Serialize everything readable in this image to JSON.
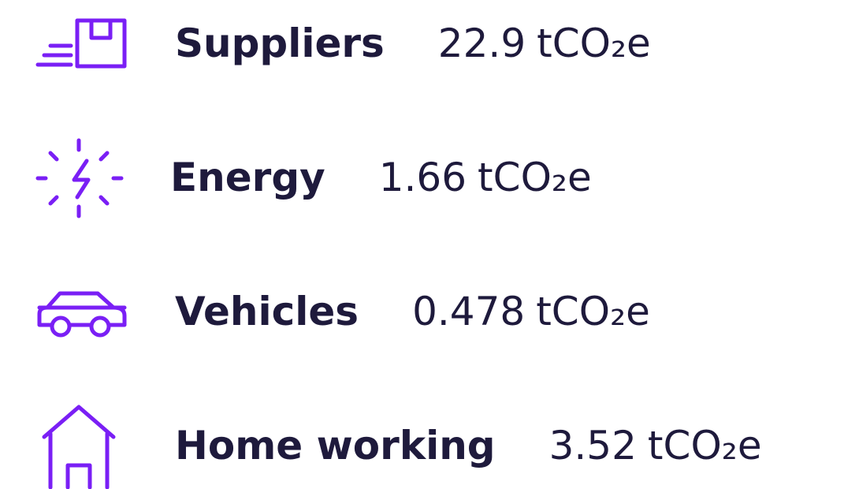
{
  "items": [
    {
      "label": "Suppliers",
      "value": 22.9,
      "unit": "tCO₂e"
    },
    {
      "label": "Energy",
      "value": 1.66,
      "unit": "tCO₂e"
    },
    {
      "label": "Vehicles",
      "value": 0.478,
      "unit": "tCO₂e"
    },
    {
      "label": "Home working",
      "value": 3.52,
      "unit": "tCO₂e"
    }
  ]
}
